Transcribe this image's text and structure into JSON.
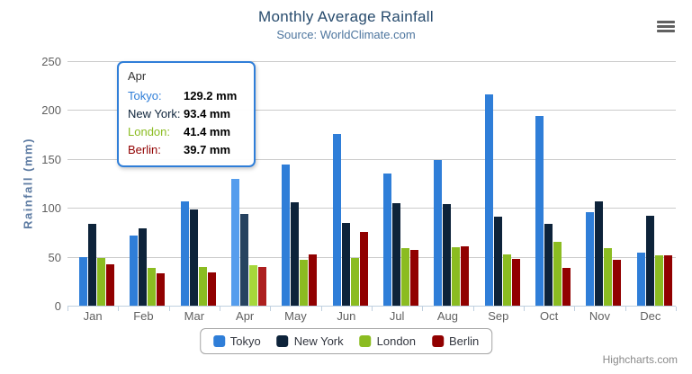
{
  "chart_data": {
    "type": "bar",
    "title": "Monthly Average Rainfall",
    "subtitle": "Source: WorldClimate.com",
    "xlabel": "",
    "ylabel": "Rainfall (mm)",
    "ylim": [
      0,
      250
    ],
    "ytick_interval": 50,
    "yticks": [
      "0",
      "50",
      "100",
      "150",
      "200",
      "250"
    ],
    "grid": true,
    "legend_position": "bottom-center",
    "categories": [
      "Jan",
      "Feb",
      "Mar",
      "Apr",
      "May",
      "Jun",
      "Jul",
      "Aug",
      "Sep",
      "Oct",
      "Nov",
      "Dec"
    ],
    "series": [
      {
        "name": "Tokyo",
        "color": "#2f7ed8",
        "hover_color": "#559ded",
        "values": [
          49.9,
          71.5,
          106.4,
          129.2,
          144.0,
          176.0,
          135.6,
          148.5,
          216.4,
          194.1,
          95.6,
          54.4
        ]
      },
      {
        "name": "New York",
        "color": "#0d233a",
        "hover_color": "#274360",
        "values": [
          83.6,
          78.8,
          98.5,
          93.4,
          106.0,
          84.5,
          105.0,
          104.3,
          91.2,
          83.5,
          106.6,
          92.3
        ]
      },
      {
        "name": "London",
        "color": "#8bbc21",
        "hover_color": "#a6d83b",
        "values": [
          48.9,
          38.8,
          39.3,
          41.4,
          47.0,
          48.3,
          59.0,
          59.6,
          52.4,
          65.2,
          59.3,
          51.2
        ]
      },
      {
        "name": "Berlin",
        "color": "#910000",
        "hover_color": "#ad1f1f",
        "values": [
          42.4,
          33.2,
          34.5,
          39.7,
          52.6,
          75.5,
          57.4,
          60.4,
          47.6,
          39.1,
          46.8,
          51.1
        ]
      }
    ],
    "hovered_category_index": 3,
    "hovered_category": "Apr"
  },
  "tooltip": {
    "title": "Apr",
    "border_color": "#2f7ed8",
    "rows": [
      {
        "label": "Tokyo:",
        "value": "129.2 mm",
        "color": "#2f7ed8"
      },
      {
        "label": "New York:",
        "value": "93.4 mm",
        "color": "#0d233a"
      },
      {
        "label": "London:",
        "value": "41.4 mm",
        "color": "#8bbc21"
      },
      {
        "label": "Berlin:",
        "value": "39.7 mm",
        "color": "#910000"
      }
    ]
  },
  "export_menu": {
    "icon": "hamburger-icon"
  },
  "credits": {
    "label": "Highcharts.com"
  }
}
